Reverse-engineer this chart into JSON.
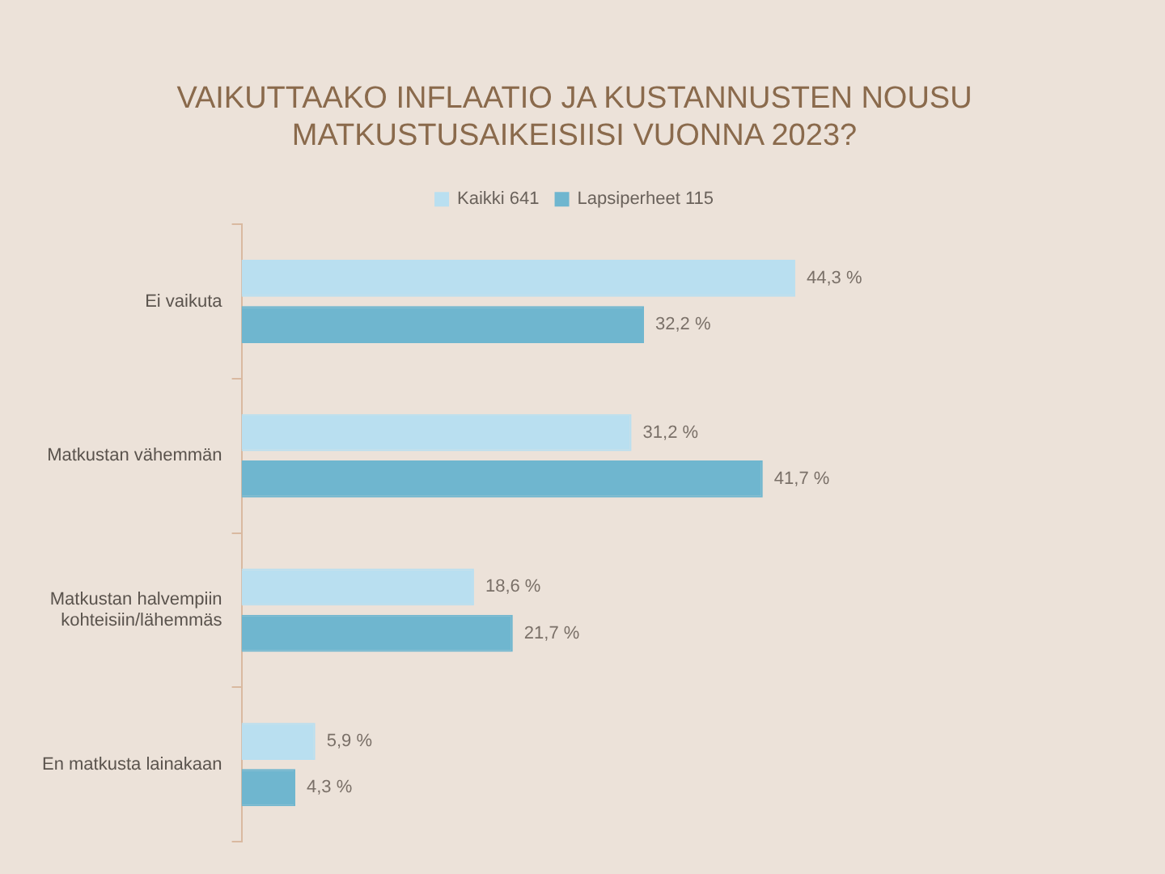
{
  "chart_data": {
    "type": "bar",
    "orientation": "horizontal",
    "title": "VAIKUTTAAKO INFLAATIO JA KUSTANNUSTEN NOUSU MATKUSTUSAIKEISIISI VUONNA 2023?",
    "categories": [
      "Ei vaikuta",
      "Matkustan vähemmän",
      "Matkustan halvempiin kohteisiin/lähemmäs",
      "En matkusta lainakaan"
    ],
    "series": [
      {
        "name": "Kaikki 641",
        "color": "#b9dff0",
        "values": [
          44.3,
          31.2,
          18.6,
          5.9
        ],
        "value_labels": [
          "44,3 %",
          "31,2 %",
          "18,6 %",
          "5,9 %"
        ]
      },
      {
        "name": "Lapsiperheet 115",
        "color": "#6fb6cf",
        "values": [
          32.2,
          41.7,
          21.7,
          4.3
        ],
        "value_labels": [
          "32,2 %",
          "41,7 %",
          "21,7 %",
          "4,3 %"
        ]
      }
    ],
    "legend": "top"
  }
}
